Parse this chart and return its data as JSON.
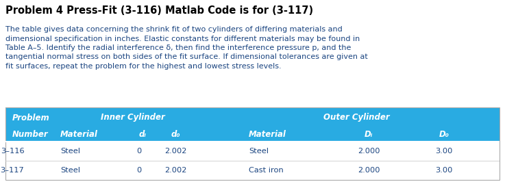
{
  "title": "Problem 4 Press-Fit (3-116) Matlab Code is for (3-117)",
  "body_text_lines": [
    "The table gives data concerning the shrink fit of two cylinders of differing materials and",
    "dimensional specification in inches. Elastic constants for different materials may be found in",
    "Table A–5. Identify the radial interference δ, then find the interference pressure p, and the",
    "tangential normal stress on both sides of the fit surface. If dimensional tolerances are given at",
    "fit surfaces, repeat the problem for the highest and lowest stress levels."
  ],
  "header_bg": "#29ABE2",
  "header_text_color": "#FFFFFF",
  "data_text_color": "#1a4480",
  "title_color": "#000000",
  "body_color": "#1a4480",
  "rows": [
    [
      "3–116",
      "Steel",
      "0",
      "2.002",
      "Steel",
      "2.000",
      "3.00"
    ],
    [
      "3–117",
      "Steel",
      "0",
      "2.002",
      "Cast iron",
      "2.000",
      "3.00"
    ]
  ]
}
